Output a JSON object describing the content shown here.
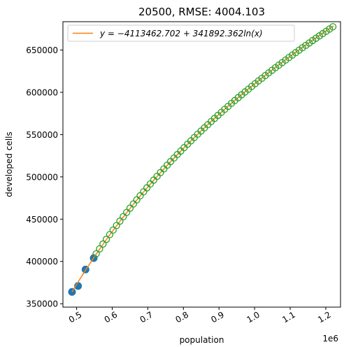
{
  "chart_data": {
    "type": "scatter",
    "title": "20500, RMSE: 4004.103",
    "xlabel": "population",
    "ylabel": "developed cells",
    "x_offset_label": "1e6",
    "xlim": [
      0.4615,
      1.2414
    ],
    "ylim": [
      346000,
      683500
    ],
    "x_ticks": [
      0.5,
      0.6,
      0.7,
      0.8,
      0.9,
      1.0,
      1.1,
      1.2
    ],
    "x_tick_labels": [
      "0.5",
      "0.6",
      "0.7",
      "0.8",
      "0.9",
      "1.0",
      "1.1",
      "1.2"
    ],
    "y_ticks": [
      350000,
      400000,
      450000,
      500000,
      550000,
      600000,
      650000
    ],
    "y_tick_labels": [
      "350000",
      "400000",
      "450000",
      "500000",
      "550000",
      "600000",
      "650000"
    ],
    "grid": false,
    "legend_position": "top-left",
    "colors": {
      "observed": "#1f77b4",
      "fit": "#ff7f0e",
      "projected": "#2ca02c"
    },
    "fit": {
      "label": "y = −4113462.702 + 341892.362ln(x)",
      "intercept": -4113462.702,
      "slope": 341892.362,
      "x_units": 1000000,
      "x_range": [
        0.487,
        1.222
      ]
    },
    "series": [
      {
        "kind": "observed",
        "marker": "filled-circle",
        "x": [
          0.487,
          0.504,
          0.525,
          0.548
        ],
        "y": [
          364000,
          371000,
          390500,
          404000
        ]
      },
      {
        "kind": "projected",
        "marker": "hollow-circle",
        "x": [
          0.555,
          0.5645,
          0.574,
          0.5835,
          0.593,
          0.6025,
          0.612,
          0.6215,
          0.631,
          0.6405,
          0.65,
          0.6595,
          0.669,
          0.6785,
          0.688,
          0.6975,
          0.707,
          0.7165,
          0.726,
          0.7355,
          0.745,
          0.7545,
          0.764,
          0.7735,
          0.783,
          0.7925,
          0.802,
          0.8115,
          0.821,
          0.8305,
          0.84,
          0.8495,
          0.859,
          0.8685,
          0.878,
          0.8875,
          0.897,
          0.9065,
          0.916,
          0.9255,
          0.935,
          0.9445,
          0.954,
          0.9635,
          0.973,
          0.9825,
          0.992,
          1.0015,
          1.011,
          1.0205,
          1.03,
          1.0395,
          1.049,
          1.0585,
          1.068,
          1.0775,
          1.087,
          1.0965,
          1.106,
          1.1155,
          1.125,
          1.1345,
          1.144,
          1.1535,
          1.163,
          1.1725,
          1.182,
          1.1915,
          1.201,
          1.2105,
          1.22
        ],
        "y": [
          409100,
          414900,
          420600,
          426200,
          431700,
          437100,
          442500,
          447700,
          452900,
          458000,
          463000,
          468000,
          472900,
          477700,
          482400,
          487100,
          491700,
          496200,
          500700,
          505100,
          509500,
          513800,
          518100,
          522300,
          526400,
          530500,
          534600,
          538600,
          542600,
          546500,
          550400,
          554200,
          558000,
          561700,
          565400,
          569100,
          572700,
          576300,
          579900,
          583400,
          586900,
          590300,
          593700,
          597100,
          600400,
          603700,
          607000,
          610200,
          613500,
          616600,
          619800,
          622900,
          626000,
          629100,
          632100,
          635100,
          638100,
          641100,
          644000,
          646900,
          649800,
          652700,
          655500,
          658300,
          661200,
          663900,
          666700,
          669400,
          672100,
          674800,
          677500
        ]
      }
    ]
  }
}
